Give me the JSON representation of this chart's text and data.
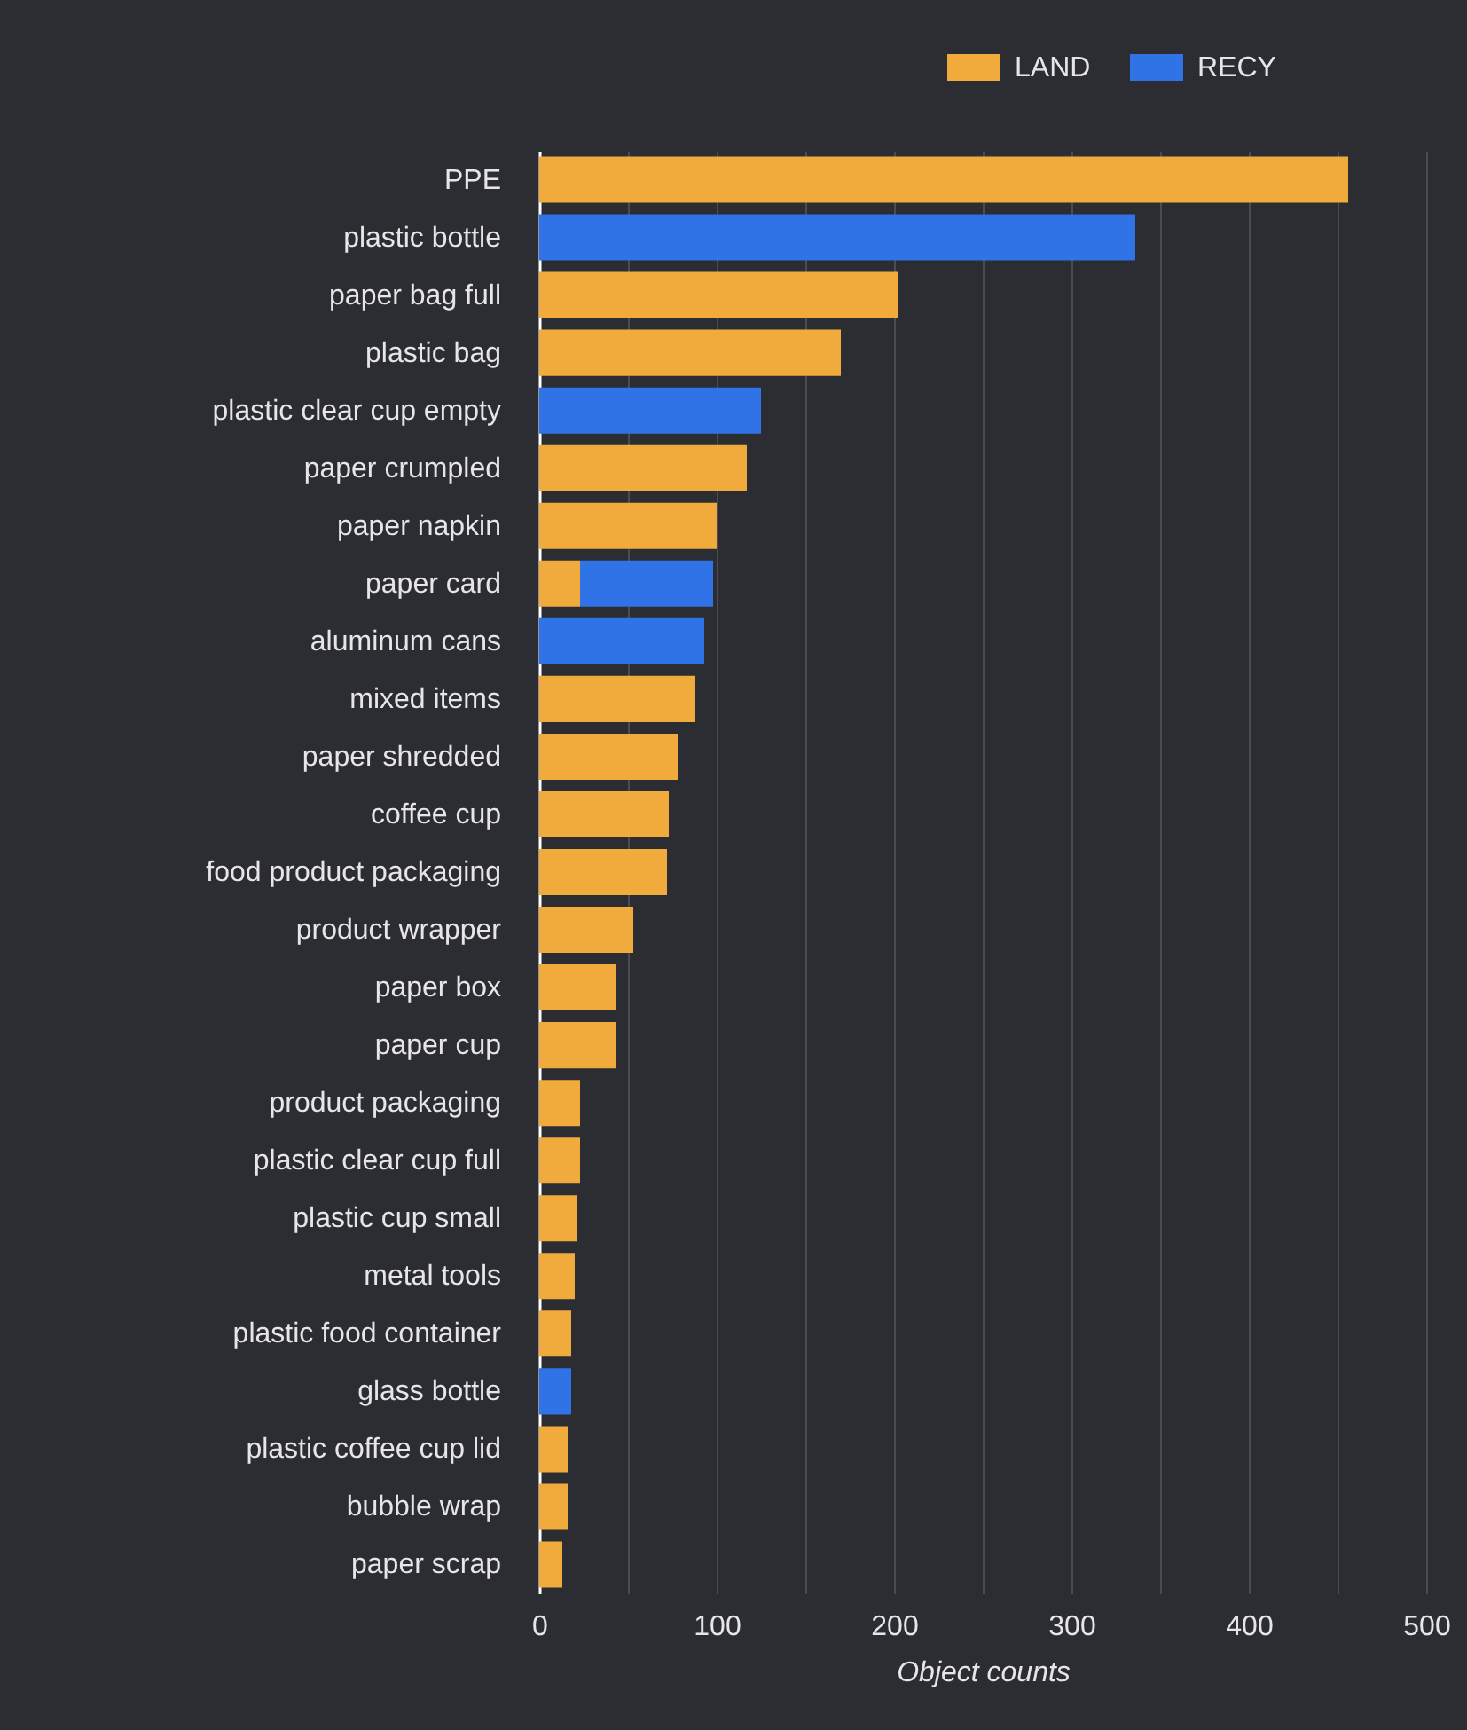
{
  "chart_data": {
    "type": "bar",
    "orientation": "horizontal",
    "stacked": true,
    "xlabel": "Object counts",
    "categories": [
      "PPE",
      "plastic bottle",
      "paper bag full",
      "plastic bag",
      "plastic clear cup empty",
      "paper crumpled",
      "paper napkin",
      "paper card",
      "aluminum cans",
      "mixed items",
      "paper shredded",
      "coffee cup",
      "food product packaging",
      "product wrapper",
      "paper box",
      "paper cup",
      "product packaging",
      "plastic clear cup full",
      "plastic cup small",
      "metal tools",
      "plastic food container",
      "glass bottle",
      "plastic coffee cup lid",
      "bubble wrap",
      "paper scrap"
    ],
    "series": [
      {
        "name": "LAND",
        "color": "#f0ab3c",
        "values": [
          456,
          null,
          202,
          170,
          null,
          117,
          100,
          23,
          null,
          88,
          78,
          73,
          72,
          53,
          43,
          43,
          23,
          23,
          21,
          20,
          18,
          null,
          16,
          16,
          13
        ]
      },
      {
        "name": "RECY",
        "color": "#2f73e6",
        "values": [
          null,
          336,
          null,
          null,
          125,
          null,
          null,
          75,
          93,
          null,
          null,
          null,
          null,
          null,
          null,
          null,
          null,
          null,
          null,
          null,
          null,
          18,
          null,
          null,
          null
        ]
      }
    ],
    "xlim": [
      0,
      500
    ],
    "xticks": [
      0,
      {
        "value": 50,
        "label": null
      },
      100,
      {
        "value": 150,
        "label": null
      },
      200,
      {
        "value": 250,
        "label": null
      },
      300,
      {
        "value": 350,
        "label": null
      },
      400,
      {
        "value": 450,
        "label": null
      },
      500
    ],
    "grid": "x",
    "legend": "top right"
  }
}
